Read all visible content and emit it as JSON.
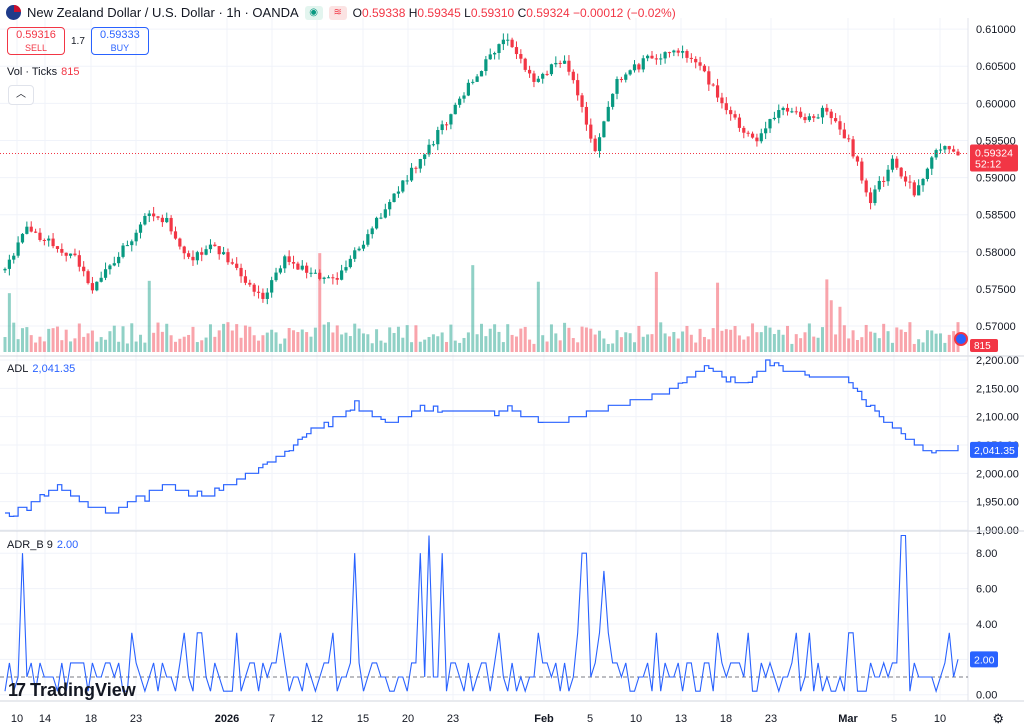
{
  "header": {
    "title": "New Zealand Dollar / U.S. Dollar · 1h · OANDA",
    "ohlc": {
      "o_label": "O",
      "o": "0.59338",
      "h_label": "H",
      "h": "0.59345",
      "l_label": "L",
      "l": "0.59310",
      "c_label": "C",
      "c": "0.59324",
      "change": "−0.00012 (−0.02%)"
    }
  },
  "trade": {
    "sell_price": "0.59316",
    "sell_label": "SELL",
    "spread": "1.7",
    "buy_price": "0.59333",
    "buy_label": "BUY"
  },
  "volume": {
    "label": "Vol · Ticks",
    "value": "815",
    "badge": "815"
  },
  "adl": {
    "label": "ADL",
    "value": "2,041.35",
    "badge": "2,041.35"
  },
  "adr": {
    "label": "ADR_B 9",
    "value": "2.00",
    "badge": "2.00"
  },
  "price_badge": {
    "price": "0.59324",
    "countdown": "52:12"
  },
  "logo": {
    "text": "TradingView"
  },
  "colors": {
    "up": "#089981",
    "down": "#f23645",
    "line": "#2962ff",
    "grid": "#f0f3fa",
    "text": "#131722"
  },
  "chart_data": [
    {
      "type": "candlestick",
      "title": "New Zealand Dollar / U.S. Dollar · 1h · OANDA",
      "x_tick_labels": [
        "10",
        "14",
        "18",
        "23",
        "2026",
        "7",
        "12",
        "15",
        "20",
        "23",
        "Feb",
        "5",
        "10",
        "13",
        "18",
        "23",
        "Mar",
        "5",
        "10"
      ],
      "ylim": [
        0.5665,
        0.6115
      ],
      "y_ticks": [
        "0.57000",
        "0.57500",
        "0.58000",
        "0.58500",
        "0.59000",
        "0.59500",
        "0.60000",
        "0.60500",
        "0.61000"
      ],
      "last_price": 0.59324,
      "path": [
        [
          0,
          0.5775
        ],
        [
          5,
          0.583
        ],
        [
          11,
          0.581
        ],
        [
          16,
          0.579
        ],
        [
          20,
          0.575
        ],
        [
          25,
          0.579
        ],
        [
          29,
          0.582
        ],
        [
          33,
          0.585
        ],
        [
          37,
          0.584
        ],
        [
          40,
          0.581
        ],
        [
          43,
          0.579
        ],
        [
          48,
          0.581
        ],
        [
          52,
          0.578
        ],
        [
          59,
          0.574
        ],
        [
          64,
          0.579
        ],
        [
          70,
          0.577
        ],
        [
          75,
          0.576
        ],
        [
          83,
          0.582
        ],
        [
          88,
          0.587
        ],
        [
          98,
          0.595
        ],
        [
          108,
          0.604
        ],
        [
          115,
          0.609
        ],
        [
          121,
          0.603
        ],
        [
          128,
          0.606
        ],
        [
          135,
          0.594
        ],
        [
          140,
          0.603
        ],
        [
          147,
          0.606
        ],
        [
          154,
          0.607
        ],
        [
          160,
          0.604
        ],
        [
          166,
          0.598
        ],
        [
          172,
          0.595
        ],
        [
          177,
          0.599
        ],
        [
          183,
          0.598
        ],
        [
          188,
          0.599
        ],
        [
          193,
          0.595
        ],
        [
          198,
          0.587
        ],
        [
          203,
          0.592
        ],
        [
          208,
          0.588
        ],
        [
          213,
          0.594
        ],
        [
          218,
          0.5935
        ]
      ],
      "volume": {
        "label": "Vol · Ticks",
        "last": 815
      }
    },
    {
      "type": "line",
      "name": "ADL",
      "ylim": [
        1900,
        2200
      ],
      "y_ticks": [
        "1,900.00",
        "1,950.00",
        "2,000.00",
        "2,050.00",
        "2,100.00",
        "2,150.00",
        "2,200.00"
      ],
      "last": 2041.35,
      "path": [
        [
          0,
          1925
        ],
        [
          8,
          1955
        ],
        [
          12,
          1975
        ],
        [
          18,
          1945
        ],
        [
          25,
          1930
        ],
        [
          30,
          1955
        ],
        [
          37,
          1980
        ],
        [
          45,
          1955
        ],
        [
          55,
          1995
        ],
        [
          63,
          2030
        ],
        [
          70,
          2075
        ],
        [
          80,
          2115
        ],
        [
          88,
          2090
        ],
        [
          95,
          2115
        ],
        [
          105,
          2105
        ],
        [
          115,
          2110
        ],
        [
          125,
          2085
        ],
        [
          133,
          2105
        ],
        [
          140,
          2120
        ],
        [
          150,
          2140
        ],
        [
          160,
          2185
        ],
        [
          168,
          2160
        ],
        [
          175,
          2190
        ],
        [
          183,
          2175
        ],
        [
          192,
          2165
        ],
        [
          200,
          2100
        ],
        [
          210,
          2040
        ],
        [
          218,
          2045
        ]
      ]
    },
    {
      "type": "line",
      "name": "ADR_B 9",
      "ylim": [
        -0.3,
        9.2
      ],
      "y_ticks": [
        "0.00",
        "2.00",
        "4.00",
        "6.00",
        "8.00"
      ],
      "last": 2.0,
      "baseline": 1.0
    }
  ]
}
